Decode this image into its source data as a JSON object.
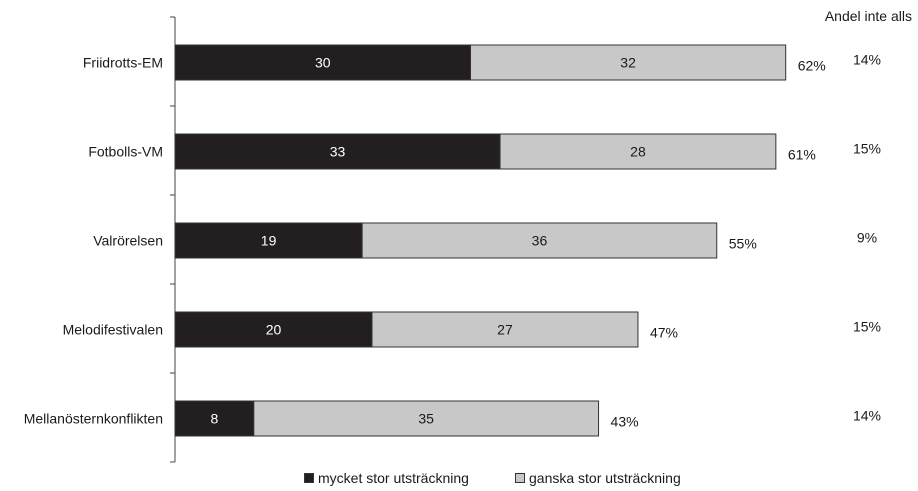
{
  "chart_data": {
    "type": "bar",
    "orientation": "horizontal",
    "stacked": true,
    "categories": [
      "Friidrotts-EM",
      "Fotbolls-VM",
      "Valrörelsen",
      "Melodifestivalen",
      "Mellanösternkonflikten"
    ],
    "series": [
      {
        "name": "mycket stor utsträckning",
        "values": [
          30,
          33,
          19,
          20,
          8
        ],
        "color": "#231f20"
      },
      {
        "name": "ganska stor utsträckning",
        "values": [
          32,
          28,
          36,
          27,
          35
        ],
        "color": "#c8c8c8"
      }
    ],
    "total_labels": [
      "62%",
      "61%",
      "55%",
      "47%",
      "43%"
    ],
    "extra_column": {
      "header": "Andel inte alls",
      "values": [
        "14%",
        "15%",
        "9%",
        "15%",
        "14%"
      ]
    },
    "xlim": [
      0,
      100
    ],
    "legend_position": "bottom",
    "grid": false
  }
}
